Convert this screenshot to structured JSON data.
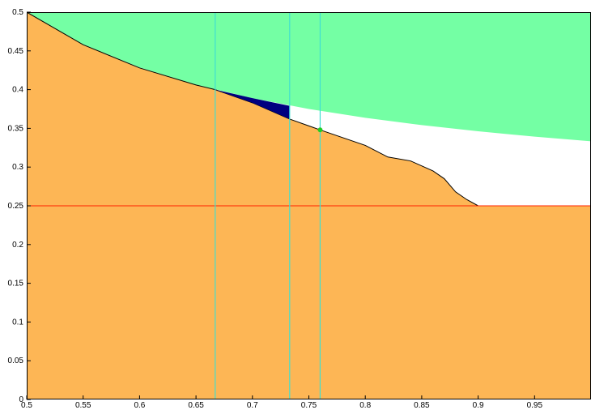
{
  "chart_data": {
    "type": "region",
    "xlim": [
      0.5,
      1
    ],
    "ylim": [
      0,
      0.5
    ],
    "xticks": [
      0.5,
      0.55,
      0.6,
      0.65,
      0.7,
      0.75,
      0.8,
      0.85,
      0.9,
      0.95
    ],
    "yticks": [
      0,
      0.05,
      0.1,
      0.15,
      0.2,
      0.25,
      0.3,
      0.35,
      0.4,
      0.45,
      0.5
    ],
    "series": [
      {
        "color": "#74ffa4",
        "fill": "above",
        "x": [
          0.5,
          0.55,
          0.6,
          0.65,
          0.7,
          0.75,
          0.8,
          0.85,
          0.9,
          0.95,
          1
        ],
        "values": [
          0.5,
          0.4583,
          0.4286,
          0.4063,
          0.3889,
          0.375,
          0.3636,
          0.3542,
          0.3462,
          0.3393,
          0.3333
        ]
      },
      {
        "color": "#fdb655",
        "fill": "below",
        "line_color": "#000000",
        "x": [
          0.5,
          0.55,
          0.6,
          0.65,
          0.667,
          0.7,
          0.733,
          0.76,
          0.8,
          0.82,
          0.84,
          0.86,
          0.87,
          0.88,
          0.89,
          0.9,
          1
        ],
        "values": [
          0.5,
          0.458,
          0.428,
          0.406,
          0.4,
          0.383,
          0.362,
          0.348,
          0.328,
          0.313,
          0.308,
          0.295,
          0.285,
          0.268,
          0.258,
          0.25,
          0.25
        ]
      },
      {
        "color": "#000080",
        "fill": "polygon",
        "x": [
          0.667,
          0.7,
          0.733,
          0.733,
          0.7,
          0.667
        ],
        "values": [
          0.4,
          0.389,
          0.379,
          0.362,
          0.383,
          0.4
        ]
      }
    ],
    "vlines": {
      "color": "#40e0d0",
      "values": [
        0.667,
        0.733,
        0.76
      ]
    },
    "hlines": {
      "color": "#ff2200",
      "values": [
        0.25
      ]
    },
    "points": {
      "color": "#22cc22",
      "x": [
        0.76
      ],
      "values": [
        0.348
      ]
    }
  }
}
